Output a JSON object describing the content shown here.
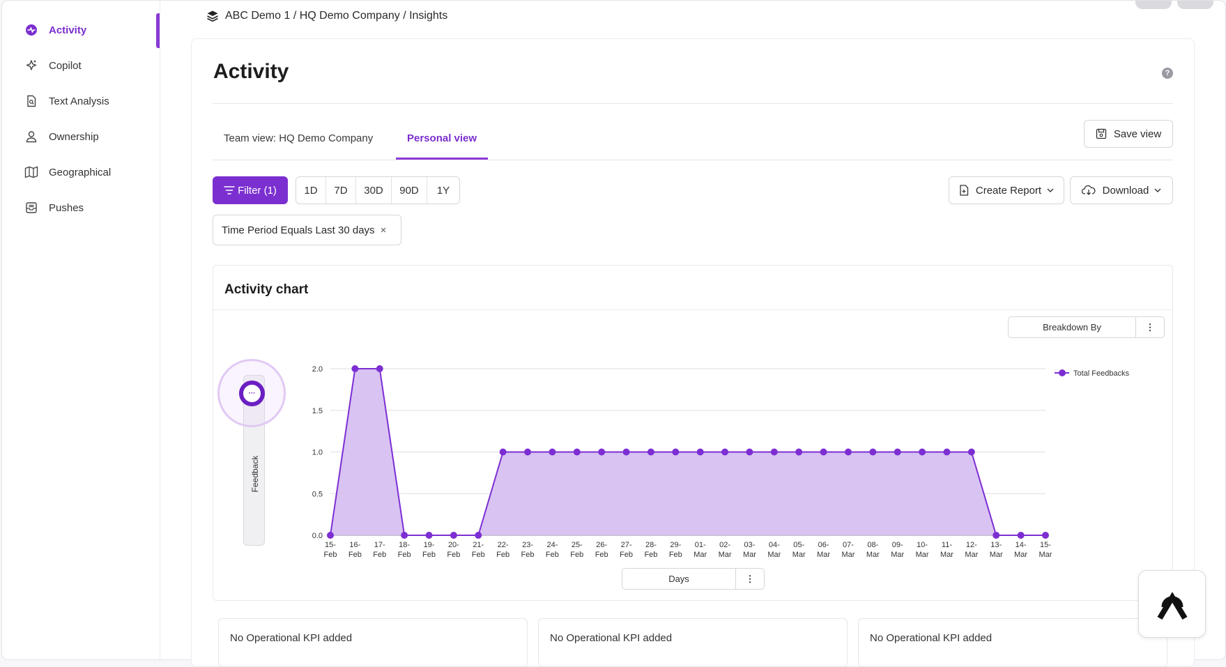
{
  "sidebar": {
    "items": [
      {
        "label": "Activity",
        "icon": "activity-icon",
        "active": true
      },
      {
        "label": "Copilot",
        "icon": "sparkle-icon"
      },
      {
        "label": "Text Analysis",
        "icon": "document-icon"
      },
      {
        "label": "Ownership",
        "icon": "user-icon"
      },
      {
        "label": "Geographical",
        "icon": "map-icon"
      },
      {
        "label": "Pushes",
        "icon": "inbox-icon"
      }
    ]
  },
  "breadcrumb": "ABC Demo 1 / HQ Demo Company / Insights",
  "page": {
    "title": "Activity",
    "help": "?"
  },
  "tabs": [
    {
      "label": "Team view: HQ Demo Company"
    },
    {
      "label": "Personal view",
      "active": true
    }
  ],
  "toolbar": {
    "save_view": "Save view",
    "filter": "Filter (1)",
    "ranges": [
      "1D",
      "7D",
      "30D",
      "90D",
      "1Y"
    ],
    "create_report": "Create Report",
    "download": "Download"
  },
  "filter_chip": {
    "label": "Time Period Equals Last 30 days",
    "close": "×"
  },
  "chart_panel": {
    "title": "Activity chart",
    "breakdown_label": "Breakdown By",
    "menu_dots": "⋮",
    "y_selector_label": "Feedback",
    "x_selector_label": "Days",
    "knob_glyph": "···"
  },
  "chart_data": {
    "type": "area",
    "x": [
      "15-Feb",
      "16-Feb",
      "17-Feb",
      "18-Feb",
      "19-Feb",
      "20-Feb",
      "21-Feb",
      "22-Feb",
      "23-Feb",
      "24-Feb",
      "25-Feb",
      "26-Feb",
      "27-Feb",
      "28-Feb",
      "29-Feb",
      "01-Mar",
      "02-Mar",
      "03-Mar",
      "04-Mar",
      "05-Mar",
      "06-Mar",
      "07-Mar",
      "08-Mar",
      "09-Mar",
      "10-Mar",
      "11-Mar",
      "12-Mar",
      "13-Mar",
      "14-Mar",
      "15-Mar"
    ],
    "series": [
      {
        "name": "Total Feedbacks",
        "values": [
          0,
          2,
          2,
          0,
          0,
          0,
          0,
          1,
          1,
          1,
          1,
          1,
          1,
          1,
          1,
          1,
          1,
          1,
          1,
          1,
          1,
          1,
          1,
          1,
          1,
          1,
          1,
          0,
          0,
          0
        ]
      }
    ],
    "yticks": [
      "0.0",
      "0.5",
      "1.0",
      "1.5",
      "2.0"
    ],
    "ylim": [
      0,
      2
    ],
    "grid": true,
    "legend": "top-right",
    "colors": {
      "line": "#7d2ed3",
      "fill": "#d4bdf1"
    }
  },
  "kpis": [
    {
      "label": "No Operational KPI added"
    },
    {
      "label": "No Operational KPI added"
    },
    {
      "label": "No Operational KPI added"
    }
  ],
  "colors": {
    "accent": "#7b2fd0"
  }
}
